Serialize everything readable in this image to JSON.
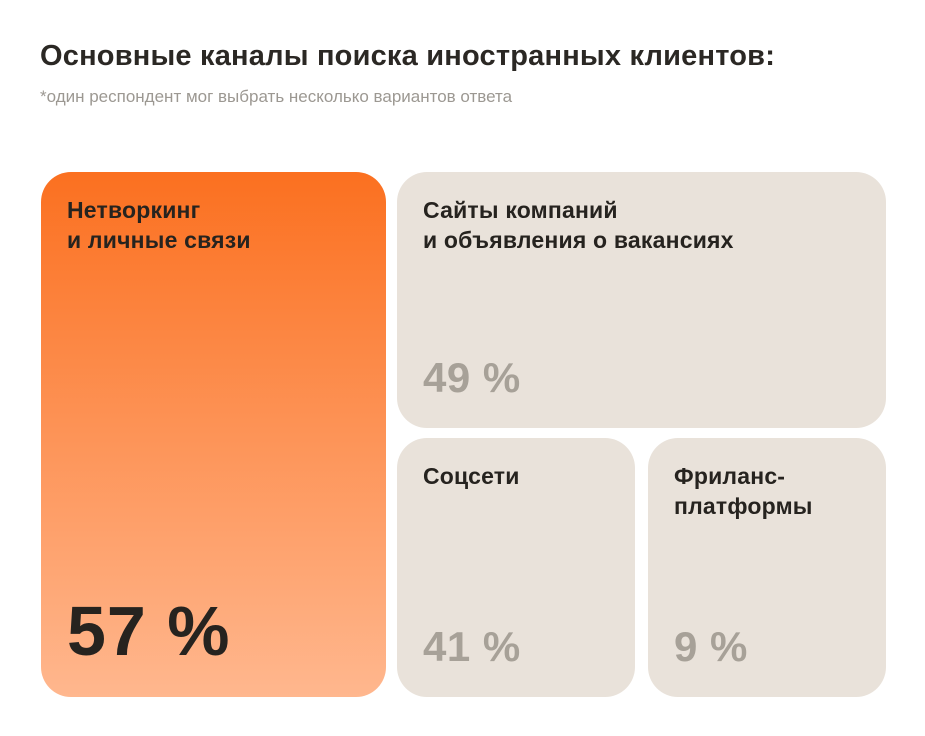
{
  "page": {
    "title": "Основные каналы поиска иностранных клиентов:",
    "subtitle": "*один респондент мог выбрать несколько вариантов ответа"
  },
  "cards": [
    {
      "id": "networking",
      "label": "Нетворкинг\nи личные связи",
      "value": "57 %",
      "highlighted": true
    },
    {
      "id": "company-websites",
      "label": "Сайты компаний\nи объявления о вакансиях",
      "value": "49 %",
      "highlighted": false
    },
    {
      "id": "social-media",
      "label": "Соцсети",
      "value": "41 %",
      "highlighted": false
    },
    {
      "id": "freelance-platforms",
      "label": "Фриланс-\nплатформы",
      "value": "9 %",
      "highlighted": false
    }
  ],
  "colors": {
    "background": "#FFFFFF",
    "accent_gradient_top": "#FB7020",
    "accent_gradient_bottom": "#FFB78E",
    "card_background": "#E9E2DA",
    "title_text": "#2B2824",
    "subtitle_text": "#9C9892",
    "card_label_text": "#26231F",
    "muted_value_text": "#A7A198"
  },
  "chart_data": {
    "type": "bar",
    "title": "Основные каналы поиска иностранных клиентов:",
    "subtitle": "*один респондент мог выбрать несколько вариантов ответа",
    "categories": [
      "Нетворкинг и личные связи",
      "Сайты компаний и объявления о вакансиях",
      "Соцсети",
      "Фриланс-платформы"
    ],
    "values": [
      57,
      49,
      41,
      9
    ],
    "unit": "%",
    "xlabel": "",
    "ylabel": "",
    "ylim": [
      0,
      100
    ],
    "grid": false,
    "legend": "none",
    "layout": "proportional-card-grid, top value highlighted in orange gradient, others on beige cards with gray values"
  }
}
